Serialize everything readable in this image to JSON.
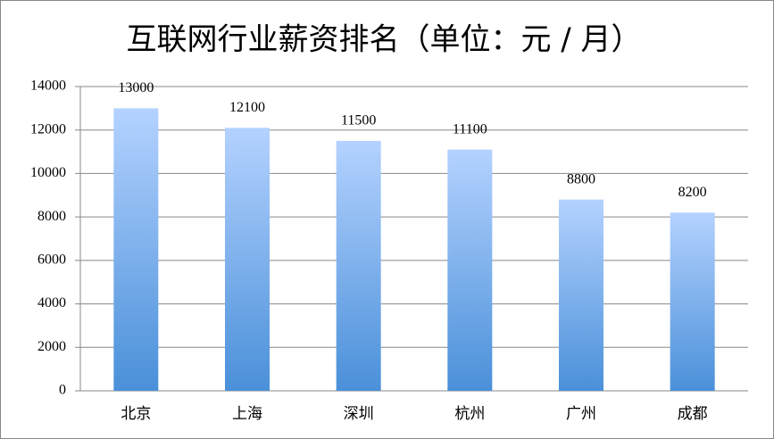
{
  "chart_data": {
    "type": "bar",
    "title": "互联网行业薪资排名（单位：元 / 月）",
    "categories": [
      "北京",
      "上海",
      "深圳",
      "杭州",
      "广州",
      "成都"
    ],
    "values": [
      13000,
      12100,
      11500,
      11100,
      8800,
      8200
    ],
    "color": "#4a90d9",
    "ylim": [
      0,
      14000
    ],
    "yticks": [
      0,
      2000,
      4000,
      6000,
      8000,
      10000,
      12000,
      14000
    ],
    "grid": true
  }
}
